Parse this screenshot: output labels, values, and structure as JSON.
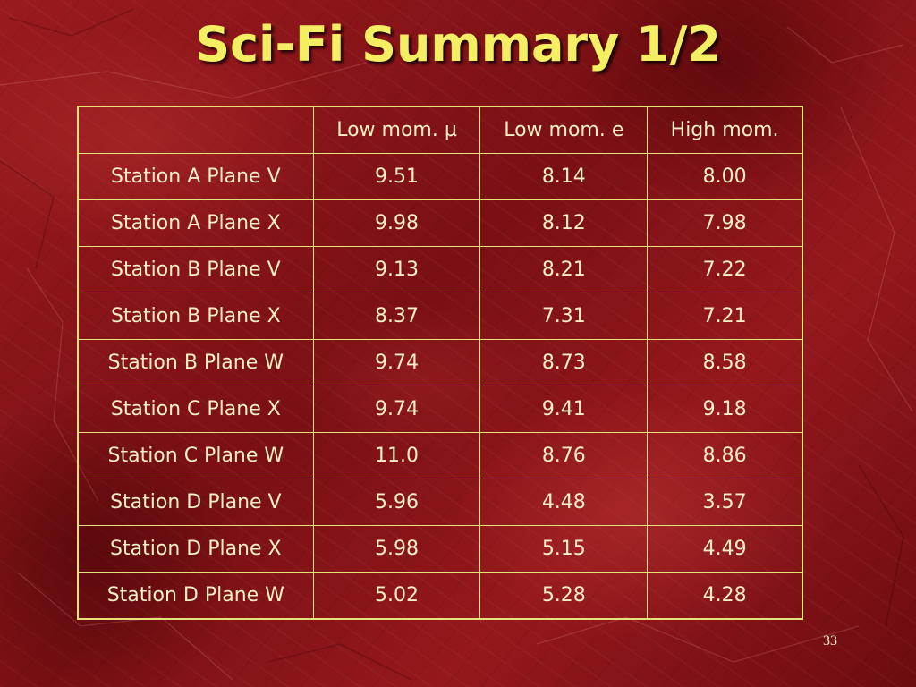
{
  "slide": {
    "title": "Sci-Fi Summary 1/2",
    "page_number": "33"
  },
  "table": {
    "headers": [
      "",
      "Low mom. µ",
      "Low mom. e",
      "High mom."
    ],
    "rows": [
      [
        "Station A Plane V",
        "9.51",
        "8.14",
        "8.00"
      ],
      [
        "Station A Plane X",
        "9.98",
        "8.12",
        "7.98"
      ],
      [
        "Station B Plane V",
        "9.13",
        "8.21",
        "7.22"
      ],
      [
        "Station B Plane X",
        "8.37",
        "7.31",
        "7.21"
      ],
      [
        "Station B Plane W",
        "9.74",
        "8.73",
        "8.58"
      ],
      [
        "Station C Plane X",
        "9.74",
        "9.41",
        "9.18"
      ],
      [
        "Station C Plane W",
        "11.0",
        "8.76",
        "8.86"
      ],
      [
        "Station D Plane V",
        "5.96",
        "4.48",
        "3.57"
      ],
      [
        "Station D Plane X",
        "5.98",
        "5.15",
        "4.49"
      ],
      [
        "Station D Plane W",
        "5.02",
        "5.28",
        "4.28"
      ]
    ]
  },
  "colors": {
    "title": "#f4ee63",
    "table_border": "#e6e27a",
    "table_text": "#f2efc6",
    "background": "#8e1418"
  }
}
